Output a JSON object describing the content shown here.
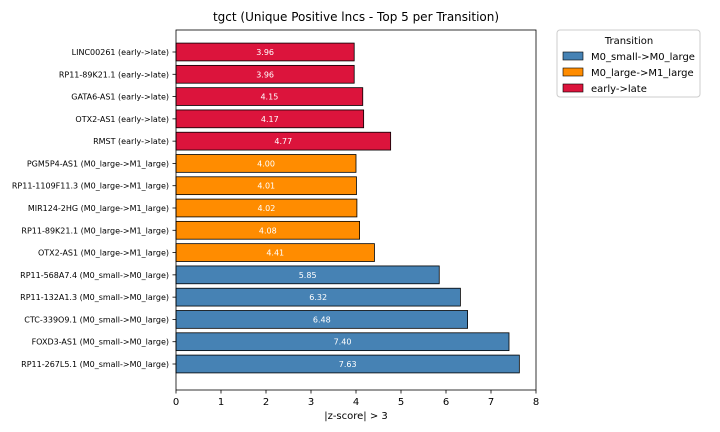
{
  "chart_data": {
    "type": "bar",
    "orientation": "horizontal",
    "title": "tgct (Unique Positive lncs - Top 5 per Transition)",
    "xlabel": "|z-score| > 3",
    "ylabel": "",
    "xlim": [
      0,
      8
    ],
    "xticks": [
      "0",
      "1",
      "2",
      "3",
      "4",
      "5",
      "6",
      "7",
      "8"
    ],
    "grid": false,
    "legend": {
      "title": "Transition",
      "placement": "outside-top-right",
      "entries": [
        {
          "label": "M0_small->M0_large",
          "color": "#4682b4"
        },
        {
          "label": "M0_large->M1_large",
          "color": "#ff8c00"
        },
        {
          "label": "early->late",
          "color": "#dc143c"
        }
      ]
    },
    "bars": [
      {
        "label": "LINC00261 (early->late)",
        "value": 3.96,
        "value_label": "3.96",
        "group": "early->late"
      },
      {
        "label": "RP11-89K21.1 (early->late)",
        "value": 3.96,
        "value_label": "3.96",
        "group": "early->late"
      },
      {
        "label": "GATA6-AS1 (early->late)",
        "value": 4.15,
        "value_label": "4.15",
        "group": "early->late"
      },
      {
        "label": "OTX2-AS1 (early->late)",
        "value": 4.17,
        "value_label": "4.17",
        "group": "early->late"
      },
      {
        "label": "RMST (early->late)",
        "value": 4.77,
        "value_label": "4.77",
        "group": "early->late"
      },
      {
        "label": "PGM5P4-AS1 (M0_large->M1_large)",
        "value": 4.0,
        "value_label": "4.00",
        "group": "M0_large->M1_large"
      },
      {
        "label": "RP11-1109F11.3 (M0_large->M1_large)",
        "value": 4.01,
        "value_label": "4.01",
        "group": "M0_large->M1_large"
      },
      {
        "label": "MIR124-2HG (M0_large->M1_large)",
        "value": 4.02,
        "value_label": "4.02",
        "group": "M0_large->M1_large"
      },
      {
        "label": "RP11-89K21.1 (M0_large->M1_large)",
        "value": 4.08,
        "value_label": "4.08",
        "group": "M0_large->M1_large"
      },
      {
        "label": "OTX2-AS1 (M0_large->M1_large)",
        "value": 4.41,
        "value_label": "4.41",
        "group": "M0_large->M1_large"
      },
      {
        "label": "RP11-568A7.4 (M0_small->M0_large)",
        "value": 5.85,
        "value_label": "5.85",
        "group": "M0_small->M0_large"
      },
      {
        "label": "RP11-132A1.3 (M0_small->M0_large)",
        "value": 6.32,
        "value_label": "6.32",
        "group": "M0_small->M0_large"
      },
      {
        "label": "CTC-339O9.1 (M0_small->M0_large)",
        "value": 6.48,
        "value_label": "6.48",
        "group": "M0_small->M0_large"
      },
      {
        "label": "FOXD3-AS1 (M0_small->M0_large)",
        "value": 7.4,
        "value_label": "7.40",
        "group": "M0_small->M0_large"
      },
      {
        "label": "RP11-267L5.1 (M0_small->M0_large)",
        "value": 7.63,
        "value_label": "7.63",
        "group": "M0_small->M0_large"
      }
    ]
  }
}
